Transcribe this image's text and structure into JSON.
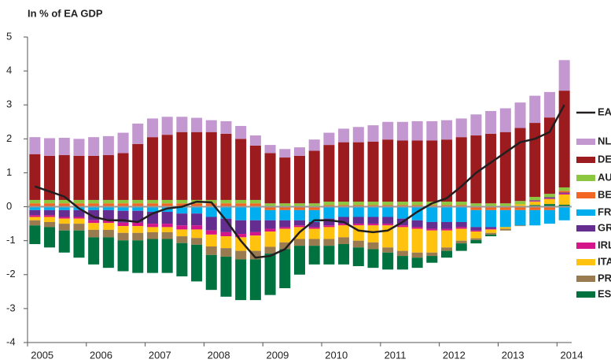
{
  "chart_data": {
    "type": "bar",
    "stacked": true,
    "title": "In % of EA GDP",
    "categories": [
      "2005",
      null,
      null,
      null,
      "2006",
      null,
      null,
      null,
      "2007",
      null,
      null,
      null,
      "2008",
      null,
      null,
      null,
      "2009",
      null,
      null,
      null,
      "2010",
      null,
      null,
      null,
      "2011",
      null,
      null,
      null,
      "2012",
      null,
      null,
      null,
      "2013",
      null,
      null,
      null,
      "2014"
    ],
    "ylim": [
      -4,
      5
    ],
    "yticks": [
      -4,
      -3,
      -2,
      -1,
      0,
      1,
      2,
      3,
      4,
      5
    ],
    "series": [
      {
        "name": "EA",
        "type": "line",
        "color": "#231f20",
        "values": [
          0.6,
          0.45,
          0.3,
          -0.05,
          -0.3,
          -0.4,
          -0.4,
          -0.45,
          -0.2,
          -0.05,
          0,
          0.15,
          0.13,
          -0.4,
          -1.0,
          -1.5,
          -1.45,
          -1.25,
          -0.75,
          -0.4,
          -0.4,
          -0.45,
          -0.7,
          -0.75,
          -0.7,
          -0.45,
          -0.15,
          0.1,
          0.25,
          0.6,
          1.0,
          1.3,
          1.6,
          1.9,
          2.0,
          2.2,
          3.0
        ]
      },
      {
        "name": "NL",
        "color": "#c397cf",
        "values": [
          0.5,
          0.52,
          0.51,
          0.5,
          0.55,
          0.56,
          0.6,
          0.6,
          0.55,
          0.53,
          0.45,
          0.42,
          0.35,
          0.37,
          0.38,
          0.3,
          0.24,
          0.25,
          0.25,
          0.33,
          0.36,
          0.4,
          0.45,
          0.48,
          0.52,
          0.55,
          0.57,
          0.57,
          0.57,
          0.55,
          0.62,
          0.67,
          0.7,
          0.75,
          0.8,
          0.75,
          0.9
        ]
      },
      {
        "name": "DE",
        "color": "#9b1b1e",
        "values": [
          1.35,
          1.3,
          1.32,
          1.3,
          1.3,
          1.32,
          1.38,
          1.65,
          1.85,
          1.92,
          2.0,
          2.0,
          2.0,
          1.95,
          1.8,
          1.6,
          1.48,
          1.35,
          1.4,
          1.55,
          1.67,
          1.75,
          1.75,
          1.77,
          1.83,
          1.8,
          1.8,
          1.8,
          1.83,
          1.9,
          2.0,
          2.05,
          2.1,
          2.15,
          2.18,
          2.25,
          2.85
        ]
      },
      {
        "name": "AU",
        "color": "#8dc63f",
        "values": [
          0.1,
          0.1,
          0.1,
          0.1,
          0.1,
          0.1,
          0.1,
          0.1,
          0.1,
          0.1,
          0.1,
          0.1,
          0.1,
          0.1,
          0.1,
          0.1,
          0.1,
          0.1,
          0.1,
          0.1,
          0.1,
          0.1,
          0.1,
          0.1,
          0.1,
          0.1,
          0.1,
          0.1,
          0.1,
          0.1,
          0.1,
          0.1,
          0.1,
          0.1,
          0.1,
          0.1,
          0.1
        ]
      },
      {
        "name": "BE",
        "color": "#f26522",
        "values": [
          0.1,
          0.1,
          0.1,
          0.1,
          0.1,
          0.1,
          0.1,
          0.1,
          0.1,
          0.1,
          0.1,
          0.1,
          0.1,
          0.1,
          0.1,
          0.1,
          -0.1,
          -0.1,
          -0.1,
          -0.1,
          0.05,
          0.05,
          0.05,
          0.05,
          0.05,
          0.05,
          0.05,
          0.05,
          0.05,
          0.05,
          -0.1,
          -0.1,
          -0.1,
          -0.1,
          -0.1,
          -0.1,
          0.05
        ]
      },
      {
        "name": "FR",
        "color": "#00aeef",
        "values": [
          -0.1,
          -0.1,
          -0.1,
          -0.1,
          -0.1,
          -0.1,
          -0.12,
          -0.12,
          -0.15,
          -0.15,
          -0.2,
          -0.2,
          -0.3,
          -0.35,
          -0.4,
          -0.4,
          -0.3,
          -0.3,
          -0.3,
          -0.35,
          -0.35,
          -0.3,
          -0.3,
          -0.3,
          -0.3,
          -0.35,
          -0.4,
          -0.45,
          -0.45,
          -0.45,
          -0.5,
          -0.5,
          -0.5,
          -0.45,
          -0.45,
          -0.4,
          -0.4
        ]
      },
      {
        "name": "GR",
        "color": "#662d91",
        "values": [
          -0.15,
          -0.15,
          -0.2,
          -0.2,
          -0.3,
          -0.3,
          -0.35,
          -0.35,
          -0.35,
          -0.35,
          -0.35,
          -0.35,
          -0.4,
          -0.4,
          -0.4,
          -0.35,
          -0.25,
          -0.2,
          -0.15,
          -0.15,
          -0.2,
          -0.2,
          -0.2,
          -0.2,
          -0.2,
          -0.2,
          -0.2,
          -0.2,
          -0.2,
          -0.15,
          -0.1,
          -0.05,
          0,
          0,
          0.02,
          0.03,
          0.03
        ]
      },
      {
        "name": "IRL",
        "color": "#d4168a",
        "values": [
          -0.05,
          -0.05,
          -0.05,
          -0.05,
          -0.08,
          -0.08,
          -0.1,
          -0.1,
          -0.1,
          -0.1,
          -0.12,
          -0.12,
          -0.12,
          -0.12,
          -0.1,
          -0.1,
          -0.08,
          -0.05,
          -0.05,
          -0.05,
          -0.05,
          -0.05,
          -0.05,
          -0.05,
          -0.05,
          -0.05,
          -0.05,
          -0.05,
          -0.05,
          -0.05,
          -0.03,
          -0.02,
          0,
          0,
          0.02,
          0.02,
          0.03
        ]
      },
      {
        "name": "ITA",
        "color": "#ffc20e",
        "values": [
          -0.1,
          -0.15,
          -0.15,
          -0.15,
          -0.2,
          -0.2,
          -0.2,
          -0.2,
          -0.15,
          -0.15,
          -0.2,
          -0.25,
          -0.35,
          -0.35,
          -0.4,
          -0.45,
          -0.45,
          -0.4,
          -0.35,
          -0.3,
          -0.35,
          -0.35,
          -0.45,
          -0.5,
          -0.65,
          -0.7,
          -0.7,
          -0.65,
          -0.5,
          -0.35,
          -0.2,
          -0.1,
          -0.05,
          0.05,
          0.1,
          0.15,
          0.3
        ]
      },
      {
        "name": "PR",
        "color": "#9a7b4f",
        "values": [
          -0.15,
          -0.15,
          -0.2,
          -0.2,
          -0.22,
          -0.22,
          -0.22,
          -0.22,
          -0.2,
          -0.2,
          -0.2,
          -0.2,
          -0.25,
          -0.25,
          -0.25,
          -0.25,
          -0.2,
          -0.2,
          -0.2,
          -0.2,
          -0.2,
          -0.2,
          -0.2,
          -0.2,
          -0.15,
          -0.15,
          -0.15,
          -0.1,
          -0.1,
          -0.08,
          -0.05,
          -0.05,
          -0.05,
          -0.02,
          0,
          0,
          0
        ]
      },
      {
        "name": "ES",
        "color": "#00723f",
        "values": [
          -0.55,
          -0.6,
          -0.65,
          -0.8,
          -0.8,
          -0.9,
          -0.91,
          -0.96,
          -1.0,
          -1.0,
          -0.98,
          -1.08,
          -1.03,
          -1.18,
          -1.2,
          -1.2,
          -1.22,
          -1.15,
          -0.85,
          -0.55,
          -0.55,
          -0.6,
          -0.55,
          -0.55,
          -0.5,
          -0.4,
          -0.3,
          -0.2,
          -0.2,
          -0.22,
          -0.1,
          -0.05,
          0,
          0.02,
          0.05,
          0.08,
          0.06
        ]
      }
    ]
  }
}
